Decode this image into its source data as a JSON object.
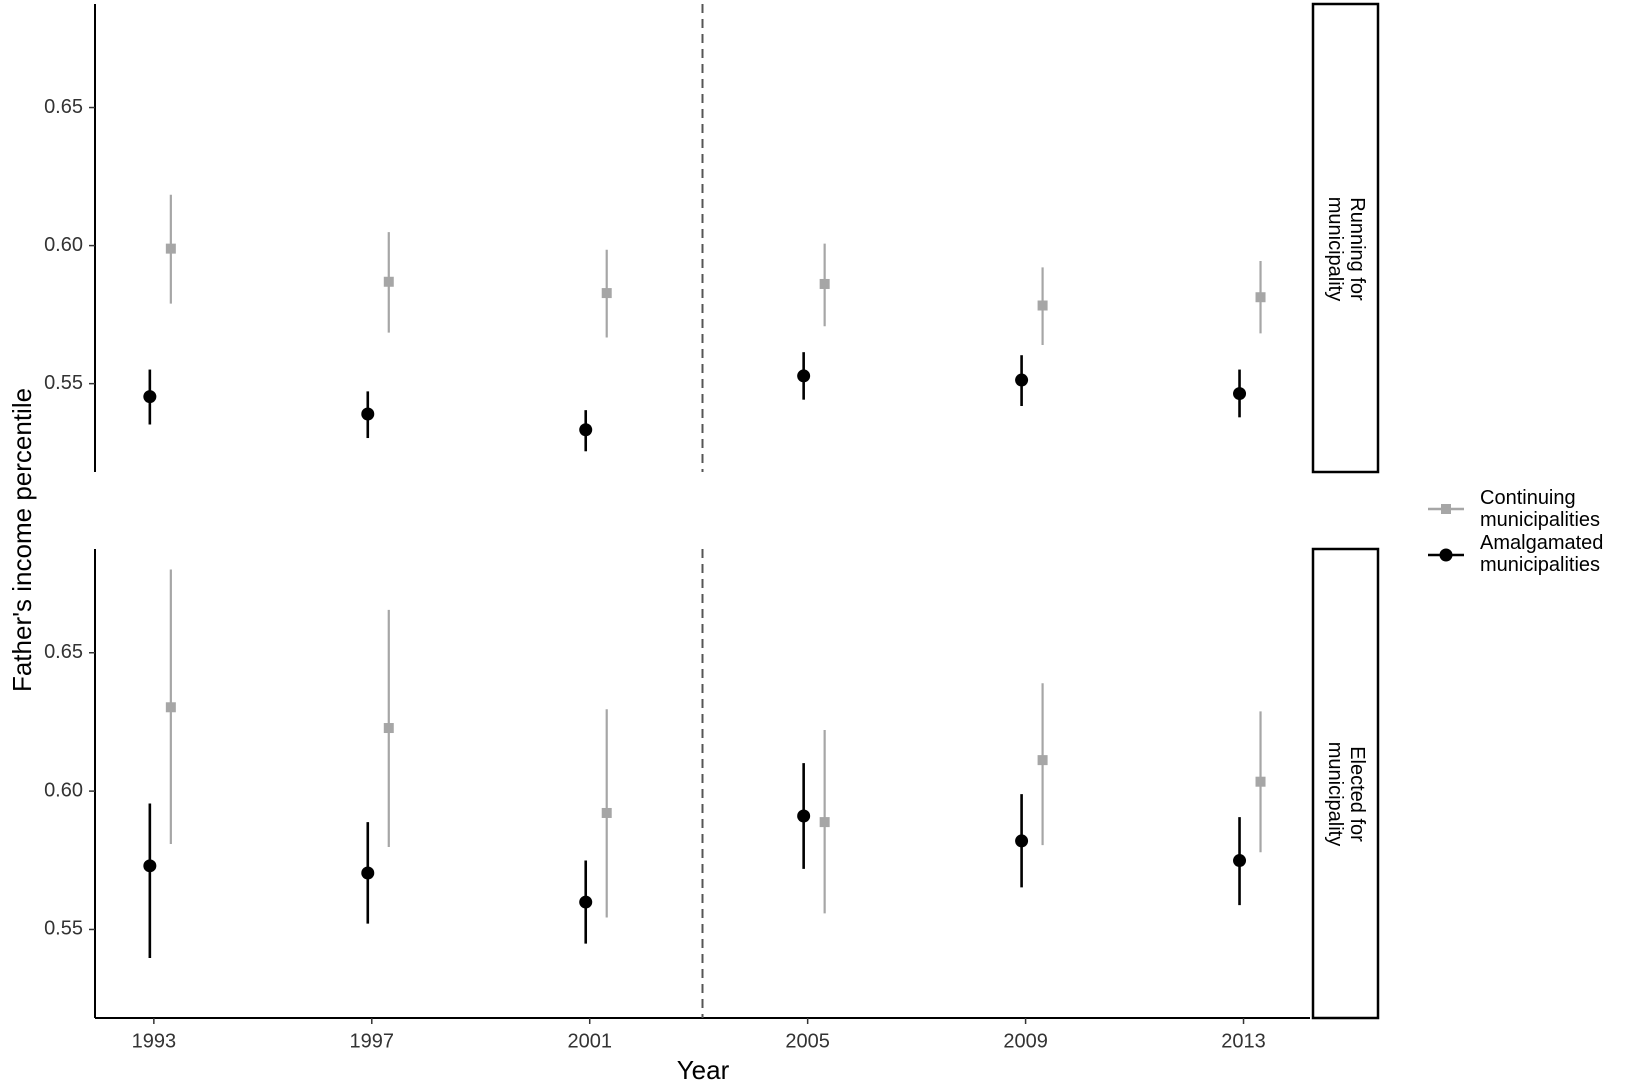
{
  "chart_data": [
    {
      "type": "pointrange",
      "title": "Running for municipality",
      "ylabel": "Father's income percentile",
      "x": [
        1993,
        1997,
        2001,
        2005,
        2009,
        2013
      ],
      "xlim": [
        1991.92,
        2014.22
      ],
      "ylim": [
        0.518,
        0.6875
      ],
      "yticks": [
        0.55,
        {
          "value": 0.6,
          "label": "0.60"
        },
        0.65
      ],
      "vline": 2003.07,
      "series": [
        {
          "name": "Continuing municipalities",
          "color": "#a6a6a6",
          "shape": "square",
          "values": [
            0.5989,
            0.5869,
            0.5828,
            0.5861,
            0.5783,
            0.5813
          ],
          "lower": [
            0.579,
            0.5685,
            0.5667,
            0.5708,
            0.564,
            0.5682
          ],
          "upper": [
            0.6184,
            0.6049,
            0.5985,
            0.6007,
            0.5921,
            0.5944
          ]
        },
        {
          "name": "Amalgamated municipalities",
          "color": "#000000",
          "shape": "circle",
          "values": [
            0.5453,
            0.539,
            0.5333,
            0.5528,
            0.5513,
            0.5464
          ],
          "lower": [
            0.5352,
            0.5303,
            0.5255,
            0.5442,
            0.5419,
            0.5378
          ],
          "upper": [
            0.5551,
            0.5472,
            0.5404,
            0.5614,
            0.5603,
            0.5551
          ]
        }
      ]
    },
    {
      "type": "pointrange",
      "title": "Elected for municipality",
      "xlabel": "Year",
      "x": [
        1993,
        1997,
        2001,
        2005,
        2009,
        2013
      ],
      "xlim": [
        1991.92,
        2014.22
      ],
      "xticks": [
        1993,
        1997,
        2001,
        2005,
        2009,
        2013
      ],
      "ylim": [
        0.518,
        0.6875
      ],
      "yticks": [
        0.55,
        {
          "value": 0.6,
          "label": "0.60"
        },
        0.65
      ],
      "vline": 2003.07,
      "series": [
        {
          "color": "#a6a6a6",
          "shape": "square",
          "values": [
            0.6303,
            0.6228,
            0.5921,
            0.5888,
            0.6112,
            0.6034
          ],
          "lower": [
            0.5809,
            0.5798,
            0.5543,
            0.5558,
            0.5805,
            0.5779
          ],
          "upper": [
            0.6801,
            0.6655,
            0.6296,
            0.6221,
            0.639,
            0.6288
          ]
        },
        {
          "color": "#000000",
          "shape": "circle",
          "values": [
            0.573,
            0.5704,
            0.5599,
            0.591,
            0.582,
            0.5749
          ],
          "lower": [
            0.5397,
            0.5521,
            0.5449,
            0.5719,
            0.5652,
            0.5588
          ],
          "upper": [
            0.5955,
            0.5888,
            0.5749,
            0.6101,
            0.5989,
            0.5906
          ]
        }
      ]
    }
  ]
}
